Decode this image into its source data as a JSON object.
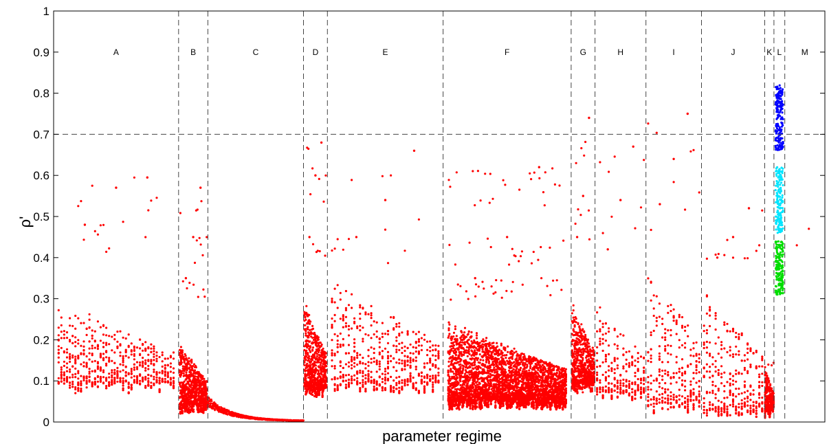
{
  "chart_data": {
    "type": "scatter",
    "xlabel": "parameter regime",
    "ylabel": "ρ'",
    "ylim": [
      0,
      1
    ],
    "yticks": [
      0,
      0.1,
      0.2,
      0.3,
      0.4,
      0.5,
      0.6,
      0.7,
      0.8,
      0.9,
      1
    ],
    "ytick_labels": [
      "0",
      "0.1",
      "0.2",
      "0.3",
      "0.4",
      "0.5",
      "0.6",
      "0.7",
      "0.8",
      "0.9",
      "1"
    ],
    "grid": false,
    "threshold": 0.7,
    "colors": {
      "red": "#ff0000",
      "blue": "#0000ff",
      "cyan": "#00e5ff",
      "green": "#00dd00",
      "dashed": "#444444",
      "axis": "#000000"
    },
    "regions": [
      {
        "label": "A",
        "start": 0.0,
        "end": 0.162,
        "low": 0.07,
        "high": 0.3,
        "outliers": [
          0.48,
          0.57,
          0.595
        ],
        "density": "medium"
      },
      {
        "label": "B",
        "start": 0.162,
        "end": 0.2,
        "low": 0.02,
        "high": 0.2,
        "outliers": [
          0.35,
          0.45,
          0.57
        ],
        "density": "high"
      },
      {
        "label": "C",
        "start": 0.2,
        "end": 0.324,
        "low": 0.0,
        "high": 0.06,
        "outliers": [],
        "density": "curve"
      },
      {
        "label": "D",
        "start": 0.324,
        "end": 0.355,
        "low": 0.06,
        "high": 0.3,
        "outliers": [
          0.45,
          0.6,
          0.68
        ],
        "density": "high"
      },
      {
        "label": "E",
        "start": 0.355,
        "end": 0.505,
        "low": 0.07,
        "high": 0.35,
        "outliers": [
          0.45,
          0.54,
          0.66
        ],
        "density": "medium"
      },
      {
        "label": "F",
        "start": 0.505,
        "end": 0.671,
        "low": 0.03,
        "high": 0.25,
        "outliers": [
          0.35,
          0.45,
          0.62
        ],
        "density": "high"
      },
      {
        "label": "G",
        "start": 0.671,
        "end": 0.702,
        "low": 0.07,
        "high": 0.3,
        "outliers": [
          0.45,
          0.55,
          0.74
        ],
        "density": "high"
      },
      {
        "label": "H",
        "start": 0.702,
        "end": 0.768,
        "low": 0.05,
        "high": 0.3,
        "outliers": [
          0.42,
          0.54,
          0.67
        ],
        "density": "medium"
      },
      {
        "label": "I",
        "start": 0.768,
        "end": 0.84,
        "low": 0.02,
        "high": 0.4,
        "outliers": [
          0.53,
          0.64,
          0.75
        ],
        "density": "medium"
      },
      {
        "label": "J",
        "start": 0.84,
        "end": 0.922,
        "low": 0.01,
        "high": 0.35,
        "outliers": [
          0.4,
          0.45,
          0.52
        ],
        "density": "medium"
      },
      {
        "label": "K",
        "start": 0.922,
        "end": 0.934,
        "low": 0.01,
        "high": 0.15,
        "outliers": [],
        "density": "high"
      },
      {
        "label": "L",
        "start": 0.934,
        "end": 0.948,
        "low": 0.31,
        "high": 0.82,
        "outliers": [],
        "density": "colored"
      },
      {
        "label": "M",
        "start": 0.948,
        "end": 1.0,
        "low": 0.42,
        "high": 0.47,
        "outliers": [],
        "density": "sparse"
      }
    ]
  }
}
